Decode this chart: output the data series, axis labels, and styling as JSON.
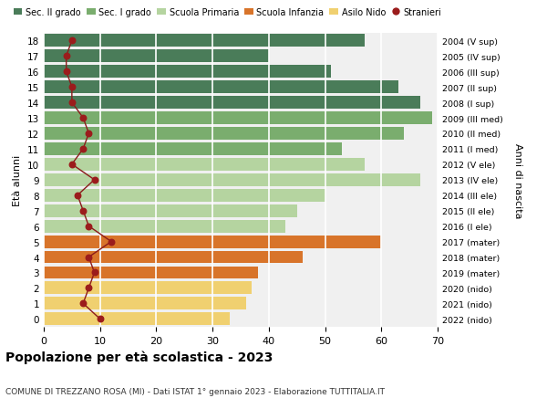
{
  "ages": [
    18,
    17,
    16,
    15,
    14,
    13,
    12,
    11,
    10,
    9,
    8,
    7,
    6,
    5,
    4,
    3,
    2,
    1,
    0
  ],
  "right_labels": [
    "2004 (V sup)",
    "2005 (IV sup)",
    "2006 (III sup)",
    "2007 (II sup)",
    "2008 (I sup)",
    "2009 (III med)",
    "2010 (II med)",
    "2011 (I med)",
    "2012 (V ele)",
    "2013 (IV ele)",
    "2014 (III ele)",
    "2015 (II ele)",
    "2016 (I ele)",
    "2017 (mater)",
    "2018 (mater)",
    "2019 (mater)",
    "2020 (nido)",
    "2021 (nido)",
    "2022 (nido)"
  ],
  "bar_values": [
    57,
    40,
    51,
    63,
    67,
    69,
    64,
    53,
    57,
    67,
    50,
    45,
    43,
    60,
    46,
    38,
    37,
    36,
    33
  ],
  "stranieri_values": [
    5,
    4,
    4,
    5,
    5,
    7,
    8,
    7,
    5,
    9,
    6,
    7,
    8,
    12,
    8,
    9,
    8,
    7,
    10
  ],
  "bar_colors": {
    "18": "#4a7c59",
    "17": "#4a7c59",
    "16": "#4a7c59",
    "15": "#4a7c59",
    "14": "#4a7c59",
    "13": "#7aad6e",
    "12": "#7aad6e",
    "11": "#7aad6e",
    "10": "#b5d4a0",
    "9": "#b5d4a0",
    "8": "#b5d4a0",
    "7": "#b5d4a0",
    "6": "#b5d4a0",
    "5": "#d8742a",
    "4": "#d8742a",
    "3": "#d8742a",
    "2": "#f0d070",
    "1": "#f0d070",
    "0": "#f0d070"
  },
  "legend_labels": [
    "Sec. II grado",
    "Sec. I grado",
    "Scuola Primaria",
    "Scuola Infanzia",
    "Asilo Nido",
    "Stranieri"
  ],
  "legend_colors": [
    "#4a7c59",
    "#7aad6e",
    "#b5d4a0",
    "#d8742a",
    "#f0d070",
    "#9b1c1c"
  ],
  "stranieri_color": "#9b1c1c",
  "stranieri_line_color": "#8b1a1a",
  "title": "Popolazione per età scolastica - 2023",
  "subtitle": "COMUNE DI TREZZANO ROSA (MI) - Dati ISTAT 1° gennaio 2023 - Elaborazione TUTTITALIA.IT",
  "ylabel": "Età alunni",
  "right_ylabel": "Anni di nascita",
  "xlim": [
    0,
    70
  ],
  "xticks": [
    0,
    10,
    20,
    30,
    40,
    50,
    60,
    70
  ],
  "background_color": "#ffffff",
  "bar_background": "#f0f0f0"
}
